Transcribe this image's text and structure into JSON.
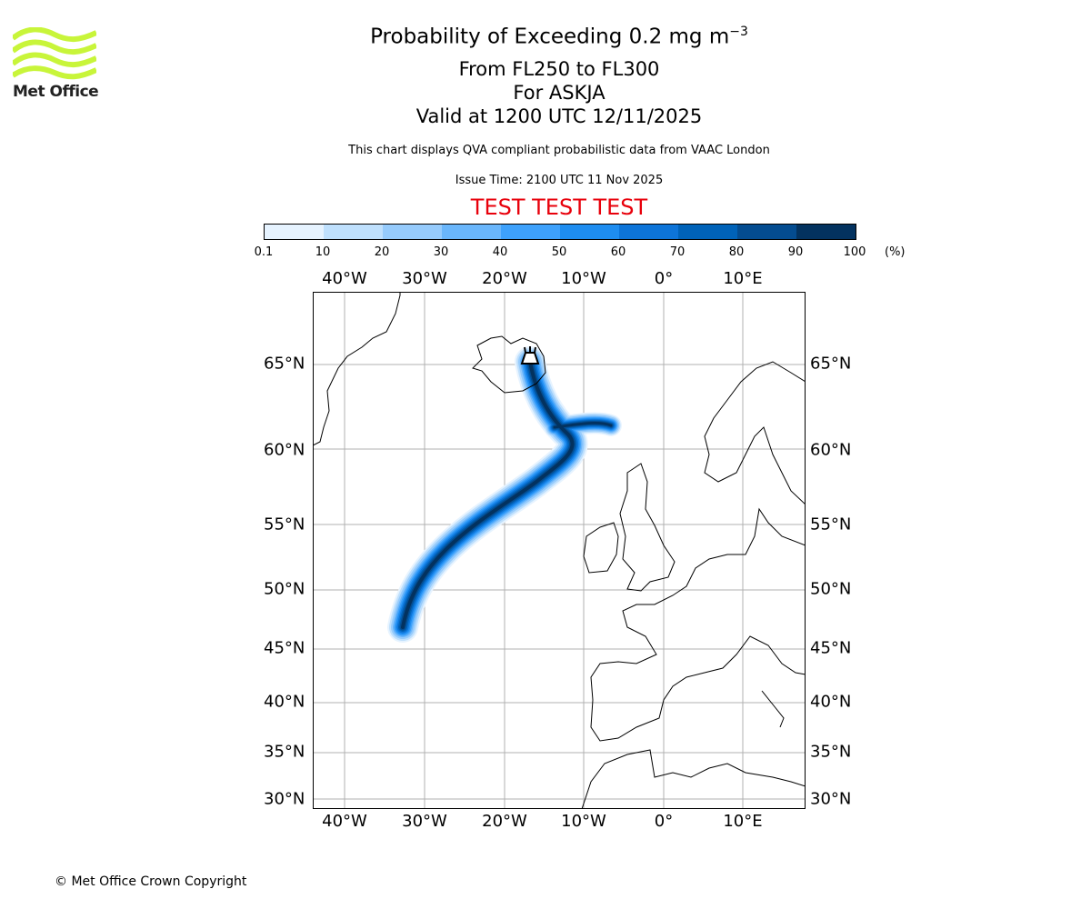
{
  "logo": {
    "text": "Met Office",
    "color": "#c8f53a"
  },
  "titles": {
    "main": "Probability of Exceeding 0.2 mg m",
    "main_sup": "−3",
    "levels": "From FL250 to FL300",
    "volcano": "For ASKJA",
    "valid": "Valid at 1200 UTC 12/11/2025"
  },
  "subtitle": "This chart displays QVA compliant probabilistic data from VAAC London",
  "issue_time": "Issue Time: 2100 UTC 11 Nov 2025",
  "test_banner": "TEST TEST TEST",
  "test_color": "#e8000b",
  "colorbar": {
    "ticks": [
      "0.1",
      "10",
      "20",
      "30",
      "40",
      "50",
      "60",
      "70",
      "80",
      "90",
      "100"
    ],
    "unit": "(%)",
    "colors": [
      "#e6f3ff",
      "#bfe0fd",
      "#96cbfc",
      "#6ab6fb",
      "#3ea1fb",
      "#1e8df0",
      "#0d74d8",
      "#0062b8",
      "#044c90",
      "#03325f"
    ]
  },
  "map": {
    "lon_labels": [
      "40°W",
      "30°W",
      "20°W",
      "10°W",
      "0°",
      "10°E"
    ],
    "lat_labels": [
      "65°N",
      "60°N",
      "55°N",
      "50°N",
      "45°N",
      "40°N",
      "35°N",
      "30°N"
    ],
    "volcano_icon": "volcano-icon"
  },
  "copyright": "© Met Office Crown Copyright"
}
